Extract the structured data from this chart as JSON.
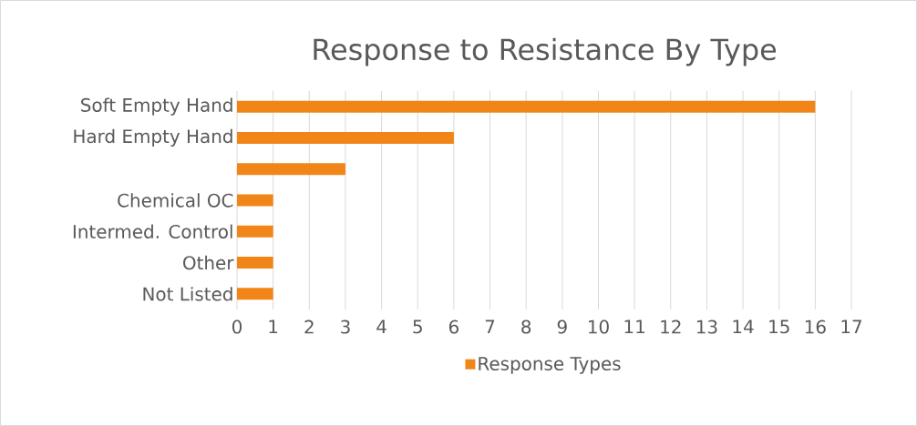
{
  "chart_data": {
    "type": "bar",
    "orientation": "horizontal",
    "title": "Response to Resistance By Type",
    "categories": [
      "Soft Empty Hand",
      "Hard Empty Hand",
      null,
      "Chemical OC",
      "Intermed. Control",
      "Other",
      "Not Listed"
    ],
    "series": [
      {
        "name": "Response Types",
        "color": "#f28518",
        "values": [
          16,
          6,
          3,
          1,
          1,
          1,
          1
        ]
      }
    ],
    "xlim": [
      0,
      17
    ],
    "xticks": [
      0,
      1,
      2,
      3,
      4,
      5,
      6,
      7,
      8,
      9,
      10,
      11,
      12,
      13,
      14,
      15,
      16,
      17
    ],
    "grid": "x",
    "legend": "bottom"
  }
}
